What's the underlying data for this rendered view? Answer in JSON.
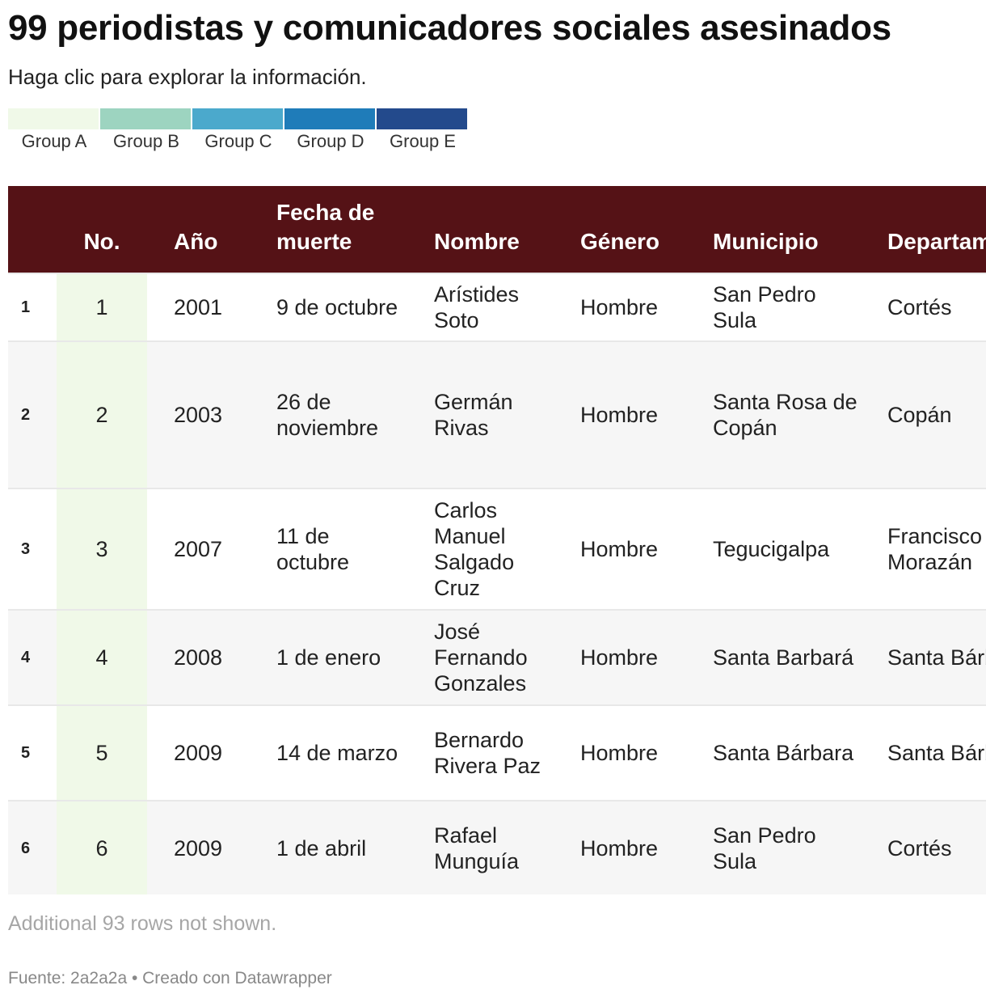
{
  "title": "99 periodistas y comunicadores sociales asesinados",
  "subtitle": "Haga clic para explorar la información.",
  "legend": [
    {
      "label": "Group A",
      "color": "#f0f9e8"
    },
    {
      "label": "Group B",
      "color": "#9dd4c0"
    },
    {
      "label": "Group C",
      "color": "#4ba9cc"
    },
    {
      "label": "Group D",
      "color": "#1f7cb9"
    },
    {
      "label": "Group E",
      "color": "#234a8c"
    }
  ],
  "colors": {
    "header_bg": "#551216",
    "group_a": "#f0f9e8"
  },
  "chart_data": {
    "type": "table",
    "columns": [
      "No.",
      "Año",
      "Fecha de muerte",
      "Nombre",
      "Género",
      "Municipio",
      "Departamento"
    ],
    "rows": [
      {
        "idx": "1",
        "no": "1",
        "ano": "2001",
        "fecha": "9 de octubre",
        "nombre": "Arístides Soto",
        "genero": "Hombre",
        "municipio": "San Pedro Sula",
        "departamento": "Cortés",
        "group": "A"
      },
      {
        "idx": "2",
        "no": "2",
        "ano": "2003",
        "fecha": "26 de noviembre",
        "nombre": "Germán Rivas",
        "genero": "Hombre",
        "municipio": "Santa Rosa de Copán",
        "departamento": "Copán",
        "group": "A"
      },
      {
        "idx": "3",
        "no": "3",
        "ano": "2007",
        "fecha": "11 de octubre",
        "nombre": "Carlos Manuel Salgado Cruz",
        "genero": "Hombre",
        "municipio": "Tegucigalpa",
        "departamento": "Francisco Morazán",
        "group": "A"
      },
      {
        "idx": "4",
        "no": "4",
        "ano": "2008",
        "fecha": "1 de enero",
        "nombre": "José Fernando Gonzales",
        "genero": "Hombre",
        "municipio": "Santa Barbará",
        "departamento": "Santa Bárbara",
        "group": "A"
      },
      {
        "idx": "5",
        "no": "5",
        "ano": "2009",
        "fecha": "14 de marzo",
        "nombre": "Bernardo Rivera Paz",
        "genero": "Hombre",
        "municipio": "Santa Bárbara",
        "departamento": "Santa Bárbara",
        "group": "A"
      },
      {
        "idx": "6",
        "no": "6",
        "ano": "2009",
        "fecha": "1 de abril",
        "nombre": "Rafael Munguía",
        "genero": "Hombre",
        "municipio": "San Pedro Sula",
        "departamento": "Cortés",
        "group": "A"
      }
    ]
  },
  "note": "Additional 93 rows not shown.",
  "footer": "Fuente: 2a2a2a • Creado con Datawrapper"
}
